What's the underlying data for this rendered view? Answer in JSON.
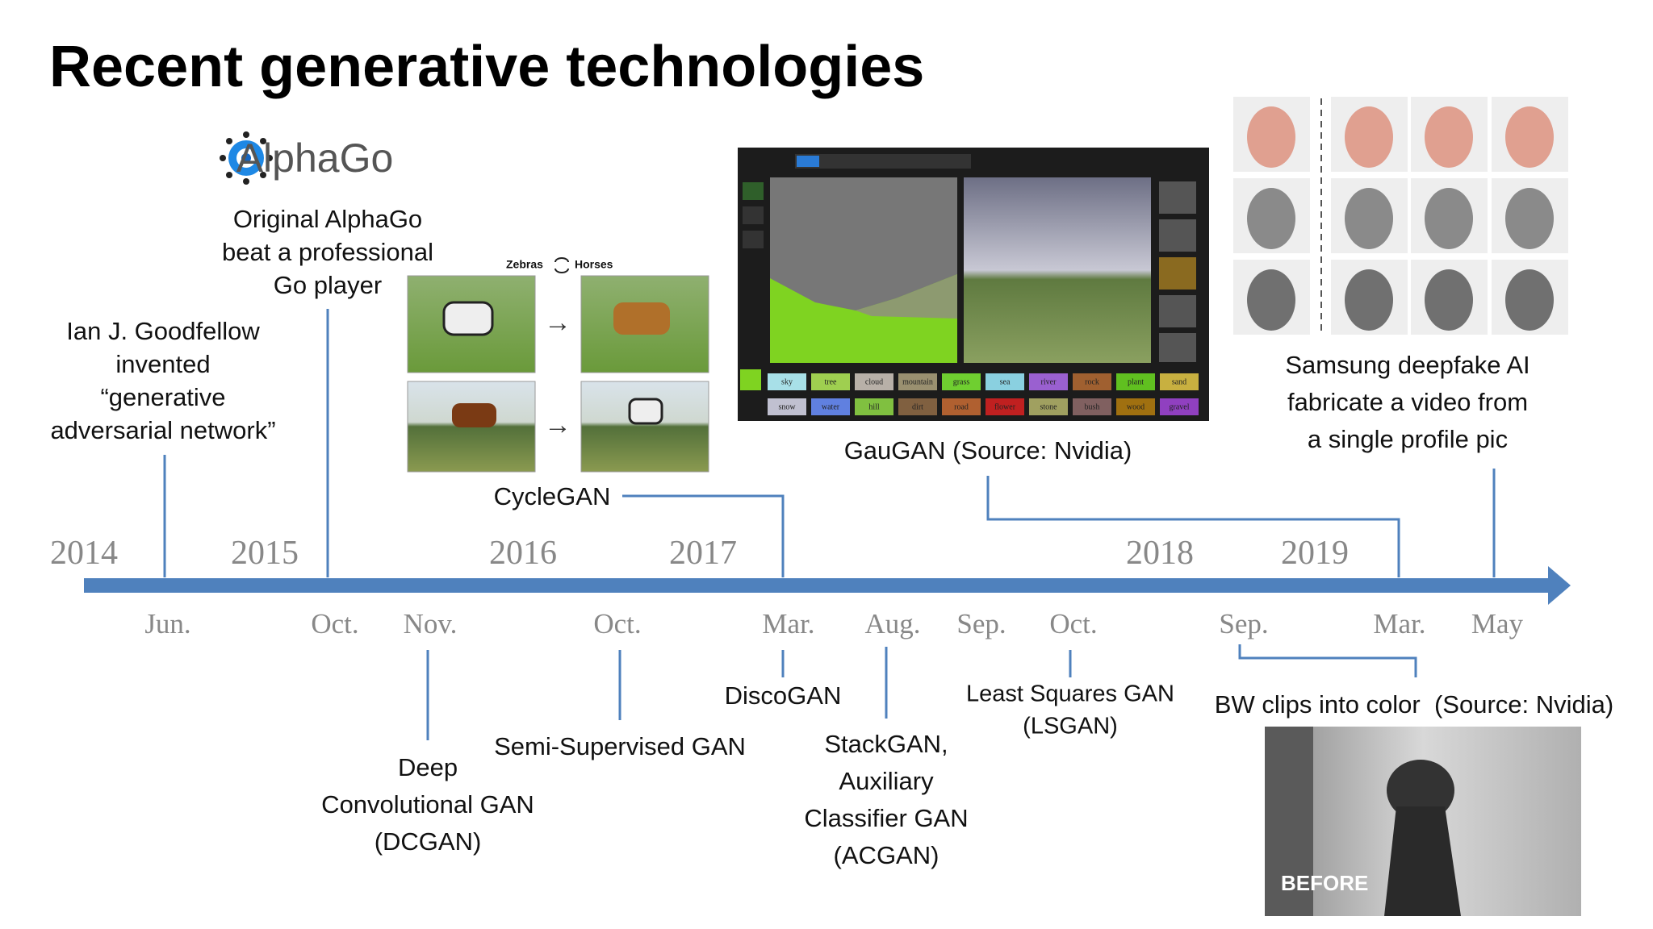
{
  "title": "Recent generative technologies",
  "timeline": {
    "years": [
      "2014",
      "2015",
      "2016",
      "2017",
      "2018",
      "2019"
    ],
    "months": [
      "Jun.",
      "Oct.",
      "Nov.",
      "Oct.",
      "Mar.",
      "Aug.",
      "Sep.",
      "Oct.",
      "Sep.",
      "Mar.",
      "May"
    ]
  },
  "above": {
    "goodfellow": [
      "Ian J. Goodfellow",
      "invented",
      "“generative",
      "adversarial network”"
    ],
    "alphago": {
      "logo": "AlphaGo",
      "caption": [
        "Original AlphaGo",
        "beat a professional",
        "Go player"
      ]
    },
    "cyclegan": {
      "label": "CycleGAN",
      "header_left": "Zebras",
      "header_right": "Horses"
    },
    "gaugan": {
      "caption": "GauGAN (Source: Nvidia)",
      "labels": [
        "sky",
        "tree",
        "cloud",
        "mountain",
        "grass",
        "sea",
        "river",
        "rock",
        "plant",
        "sand",
        "snow",
        "water",
        "hill",
        "dirt",
        "road",
        "flower",
        "stone",
        "bush",
        "wood",
        "gravel"
      ]
    },
    "samsung": [
      "Samsung deepfake AI",
      "fabricate a video from",
      "a single profile pic"
    ]
  },
  "below": {
    "dcgan": [
      "Deep",
      "Convolutional GAN",
      "(DCGAN)"
    ],
    "semi": "Semi-Supervised GAN",
    "disco": "DiscoGAN",
    "stack": [
      "StackGAN,",
      "Auxiliary",
      "Classifier GAN",
      "(ACGAN)"
    ],
    "lsgan": [
      "Least Squares GAN",
      "(LSGAN)"
    ],
    "bw": {
      "caption": "BW clips into color  (Source: Nvidia)",
      "overlay": "BEFORE"
    }
  }
}
